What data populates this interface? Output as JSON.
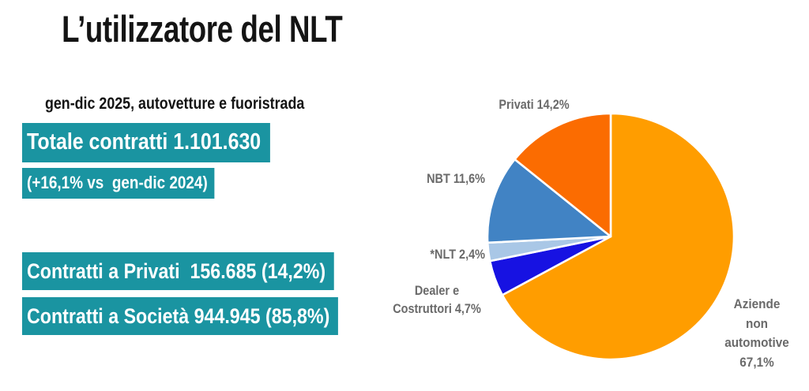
{
  "header": {
    "title": "L’utilizzatore del NLT"
  },
  "stats": {
    "subtitle": "gen-dic 2025, autovetture e fuoristrada",
    "total_contracts": "Totale contratti 1.101.630",
    "yoy_change": "(+16,1% vs  gen-dic 2024)",
    "private_contracts": "Contratti a Privati  156.685 (14,2%)",
    "company_contracts": "Contratti a Società 944.945 (85,8%)",
    "highlight_color": "#1A94A1"
  },
  "chart_data": {
    "type": "pie",
    "title": "L’utilizzatore del NLT",
    "period": "gen-dic 2025, autovetture e fuoristrada",
    "unit": "percent",
    "direction": "clockwise",
    "start_angle_deg": 0,
    "label_color": "#6A6A6A",
    "slices": [
      {
        "id": "aziende",
        "label": "Aziende non automotive",
        "value": 67.1,
        "color": "#FF9D00",
        "display_label": "Aziende non\nautomotive\n67,1%"
      },
      {
        "id": "dealer",
        "label": "Dealer e Costruttori",
        "value": 4.7,
        "color": "#1712E2",
        "display_label": "Dealer e\nCostruttori 4,7%"
      },
      {
        "id": "nlt",
        "label": "*NLT",
        "value": 2.4,
        "color": "#A9C7E6",
        "display_label": "*NLT 2,4%"
      },
      {
        "id": "nbt",
        "label": "NBT",
        "value": 11.6,
        "color": "#4183C4",
        "display_label": "NBT 11,6%"
      },
      {
        "id": "privati",
        "label": "Privati",
        "value": 14.2,
        "color": "#FB6C01",
        "display_label": "Privati 14,2%"
      }
    ]
  }
}
